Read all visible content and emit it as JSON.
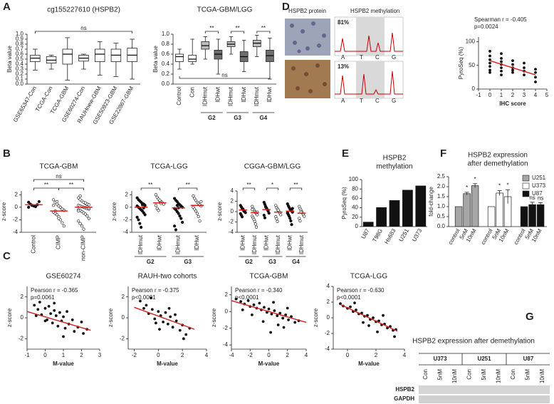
{
  "panel_labels": [
    "A",
    "D",
    "B",
    "E",
    "F",
    "C",
    "G"
  ],
  "panel_d": {
    "image_titles": [
      "HSPB2 protein",
      "HSPB2 methylation"
    ],
    "percentages": [
      "81%",
      "13%"
    ],
    "bases_top": [
      "A",
      "T",
      "C",
      "G"
    ],
    "bases_bottom": [
      "A",
      "T",
      "C",
      "G"
    ]
  },
  "panel_g": {
    "title": "HSPB2 expression after demethylation",
    "cell_lines": [
      "U373",
      "U251",
      "U87"
    ],
    "lanes": [
      "Con",
      "5nM",
      "10nM",
      "Con",
      "5nM",
      "10nM",
      "Con",
      "5nM",
      "10nM"
    ],
    "rows": [
      "HSPB2",
      "GAPDH"
    ]
  },
  "chart_data": [
    {
      "type": "box",
      "title": "cg155227610 (HSPB2)",
      "ylabel": "Beta value",
      "categories": [
        "GSE65347-Con",
        "TCGA-Con",
        "TCGA-GBM",
        "GSE60274-Con",
        "RAUHnew-GBM",
        "GSE50923-GBM",
        "GSE22867-GBM"
      ],
      "whisker_low": [
        0.28,
        0.3,
        0.08,
        0.3,
        0.18,
        0.15,
        0.1
      ],
      "q1": [
        0.45,
        0.42,
        0.4,
        0.46,
        0.45,
        0.45,
        0.45
      ],
      "median": [
        0.52,
        0.48,
        0.6,
        0.52,
        0.6,
        0.58,
        0.58
      ],
      "q3": [
        0.58,
        0.55,
        0.7,
        0.58,
        0.7,
        0.7,
        0.72
      ],
      "whisker_high": [
        0.7,
        0.58,
        0.93,
        0.6,
        0.85,
        0.82,
        0.9
      ],
      "colors": [
        "#ffffff",
        "#ffffff",
        "#ffffff",
        "#ffffff",
        "#ffffff",
        "#ffffff",
        "#ffffff"
      ],
      "ylim": [
        0,
        1
      ],
      "yticks": [
        {
          "value": 0,
          "label": "0.0"
        },
        0.1,
        0.2,
        0.3,
        0.4,
        0.5,
        0.6,
        0.7,
        0.8,
        0.9,
        {
          "value": 1,
          "label": "1.0"
        }
      ],
      "annotations": [
        "ns"
      ]
    },
    {
      "type": "box",
      "title": "TCGA-GBM/LGG",
      "ylabel": "Beta value",
      "categories": [
        "Control",
        "Con",
        "IDHmut",
        "IDHwt",
        "IDHmut",
        "IDHwt",
        "IDHmut",
        "IDHwt"
      ],
      "groups": [
        "G2",
        "G3",
        "G4"
      ],
      "whisker_low": [
        0.3,
        0.4,
        0.5,
        0.2,
        0.6,
        0.25,
        0.55,
        0.1
      ],
      "q1": [
        0.45,
        0.45,
        0.7,
        0.5,
        0.75,
        0.45,
        0.75,
        0.45
      ],
      "median": [
        0.55,
        0.5,
        0.77,
        0.6,
        0.8,
        0.55,
        0.82,
        0.57
      ],
      "q3": [
        0.6,
        0.58,
        0.85,
        0.68,
        0.85,
        0.65,
        0.88,
        0.68
      ],
      "whisker_high": [
        0.7,
        0.9,
        0.95,
        0.9,
        0.95,
        0.88,
        0.98,
        0.92
      ],
      "colors": [
        "#ffffff",
        "#ffffff",
        "#bdbdbd",
        "#6e6e6e",
        "#bdbdbd",
        "#6e6e6e",
        "#bdbdbd",
        "#6e6e6e"
      ],
      "ylim": [
        0,
        1
      ],
      "yticks": [
        {
          "value": 0,
          "label": "0.0"
        },
        0.2,
        0.4,
        0.6,
        0.8,
        {
          "value": 1,
          "label": "1.0"
        }
      ],
      "annotations": [
        "**",
        "**",
        "**",
        "ns"
      ]
    },
    {
      "type": "scatter",
      "stats": [
        "Spearman r = -0.405",
        "p=0.0024"
      ],
      "xlabel": "IHC score",
      "ylabel": "PyroSeq (%)",
      "x": [
        0,
        0,
        0,
        0,
        0,
        0,
        0,
        1,
        1,
        1,
        1,
        1,
        1,
        1,
        2,
        2,
        2,
        2,
        2,
        3,
        3,
        3,
        3,
        4,
        4,
        4,
        4
      ],
      "y": [
        80,
        70,
        62,
        55,
        48,
        40,
        35,
        75,
        65,
        58,
        52,
        45,
        38,
        30,
        60,
        52,
        45,
        40,
        35,
        55,
        45,
        38,
        30,
        42,
        35,
        25,
        15
      ],
      "fit": {
        "x": [
          0,
          4
        ],
        "y": [
          60,
          30
        ]
      },
      "fit_color": "#d62020",
      "xlim": [
        -1,
        5
      ],
      "xticks": [
        -1,
        0,
        1,
        2,
        3,
        4,
        5
      ],
      "ylim": [
        0,
        110
      ],
      "yticks": [
        0,
        50,
        100
      ]
    },
    {
      "type": "strip",
      "title": "TCGA-GBM",
      "ylabel": "z-score",
      "categories": [
        "Control",
        "CIMP",
        "non-CIMP"
      ],
      "values": [
        [
          0.8,
          0.5,
          0.3,
          0.2,
          0.1,
          0.4,
          0.9,
          0.0
        ],
        [
          1.2,
          0.8,
          0.5,
          0.2,
          0.0,
          -0.3,
          -0.5,
          -0.8,
          -1.0,
          -1.2,
          -1.5,
          -2.0,
          -2.5,
          -3.0,
          0.3,
          -0.6,
          0.9,
          -1.8
        ],
        [
          1.5,
          1.2,
          1.0,
          0.8,
          0.6,
          0.5,
          0.4,
          0.3,
          0.2,
          0.1,
          0.0,
          -0.1,
          -0.2,
          -0.3,
          -0.4,
          -0.5,
          -0.7,
          -0.9,
          -1.1,
          -1.4,
          -1.8,
          -2.2,
          -2.6,
          -3.0,
          -3.5,
          0.7,
          0.05,
          -0.15,
          -0.6,
          1.8
        ]
      ],
      "means": [
        0.4,
        -0.6,
        0.0
      ],
      "mean_color": "#e31a1c",
      "marker_filled": [
        true,
        false,
        false
      ],
      "ylim": [
        -4,
        2.6
      ],
      "yticks": [
        -4,
        -2,
        0,
        2
      ],
      "annotations": [
        "**",
        "**",
        "ns"
      ]
    },
    {
      "type": "strip",
      "title": "TCGA-LGG",
      "ylabel": "z-score",
      "categories": [
        "IDHmut",
        "IDHwt",
        "IDHmut",
        "IDHwt"
      ],
      "groups": [
        "G2",
        "G3"
      ],
      "values": [
        [
          1.5,
          1.2,
          1.0,
          0.8,
          0.6,
          0.5,
          0.3,
          0.2,
          0.0,
          -0.2,
          -0.4,
          -0.6,
          -0.9,
          -1.2,
          -1.6,
          -2.0,
          -2.6,
          -3.2,
          0.4,
          -0.1
        ],
        [
          2.0,
          1.6,
          1.3,
          1.0,
          0.9,
          0.7,
          0.5,
          0.3,
          -0.2,
          -0.5,
          1.1,
          0.6
        ],
        [
          1.4,
          1.1,
          0.9,
          0.6,
          0.4,
          0.2,
          0.0,
          -0.2,
          -0.4,
          -0.7,
          -1.0,
          -1.4,
          -1.8,
          -2.4,
          -3.0,
          -3.6,
          0.3,
          -0.1
        ],
        [
          1.8,
          1.4,
          1.1,
          0.8,
          0.6,
          0.4,
          0.2,
          0.0,
          -0.3,
          -0.6,
          -1.0,
          -1.5,
          -2.2,
          0.9
        ]
      ],
      "means": [
        0,
        0.7,
        -0.1,
        0.3
      ],
      "mean_color": "#e31a1c",
      "marker_filled": [
        true,
        false,
        true,
        false
      ],
      "ylim": [
        -4,
        2.6
      ],
      "yticks": [
        -4,
        -2,
        0,
        2
      ],
      "annotations": [
        "**",
        "**"
      ]
    },
    {
      "type": "strip",
      "title": "CGGA-GBM/LGG",
      "ylabel": "z-score",
      "categories": [
        "IDHwt",
        "IDHmut",
        "IDHwt",
        "IDHmut",
        "IDHwt",
        "IDHmut"
      ],
      "groups": [
        "G2",
        "G3",
        "G4"
      ],
      "values": [
        [
          1.2,
          0.9,
          0.6,
          0.4,
          0.2,
          0.0,
          -0.2,
          -0.4,
          -0.7,
          -1.0,
          0.5,
          0.1
        ],
        [
          1.0,
          0.6,
          0.3,
          0.0,
          -0.2,
          -0.4,
          -0.6,
          -0.9,
          -1.2,
          -1.5,
          -1.9,
          -2.4,
          -3.0,
          -0.1,
          0.4
        ],
        [
          1.8,
          1.4,
          1.0,
          0.7,
          0.4,
          0.1,
          -0.3,
          -0.7,
          -1.2,
          0.9
        ],
        [
          1.2,
          0.8,
          0.5,
          0.2,
          0.0,
          -0.3,
          -0.6,
          -1.0,
          -1.4,
          -1.9,
          0.3
        ],
        [
          1.5,
          1.1,
          0.8,
          0.5,
          0.3,
          0.1,
          -0.1,
          -0.3,
          -0.6,
          -0.9,
          -1.3,
          -1.8,
          -2.5,
          0.6,
          -0.2
        ],
        [
          1.0,
          0.6,
          0.3,
          0.0,
          -0.3,
          -0.6,
          -0.9,
          -1.3,
          -1.8,
          -0.1
        ]
      ],
      "means": [
        0.3,
        -0.2,
        0.4,
        -0.1,
        0.1,
        -0.3
      ],
      "mean_color": "#e31a1c",
      "marker_filled": [
        true,
        false,
        true,
        false,
        true,
        false
      ],
      "ylim": [
        -4,
        4
      ],
      "yticks": [
        -4,
        -2,
        0,
        2,
        4
      ],
      "annotations": [
        "**",
        "*",
        "**"
      ]
    },
    {
      "type": "bar",
      "title": [
        "HSPB2",
        "methylation"
      ],
      "ylabel": "PyroSeq (%)",
      "categories": [
        "U87",
        "T98G",
        "Hs683",
        "U251",
        "U373"
      ],
      "values": [
        10,
        41,
        56,
        78,
        87
      ],
      "color": "#111111",
      "ylim": [
        0,
        100
      ],
      "yticks": [
        0,
        20,
        40,
        60,
        80,
        100
      ]
    },
    {
      "type": "grouped_bar",
      "title": [
        "HSPB2 expression",
        "after demethylation"
      ],
      "ylabel": "fold-change",
      "categories": [
        "control",
        "5nM",
        "10nM"
      ],
      "series": [
        {
          "name": "U251",
          "color": "#a6a6a6",
          "values": [
            1,
            1.65,
            2.05
          ],
          "errors": [
            0,
            0.07,
            0.1
          ]
        },
        {
          "name": "U373",
          "color": "#ffffff",
          "values": [
            1,
            1.68,
            1.5
          ],
          "errors": [
            0,
            0.12,
            0.35
          ]
        },
        {
          "name": "U87",
          "color": "#111111",
          "values": [
            1,
            1.1,
            1.1
          ],
          "errors": [
            0,
            0.12,
            0.1
          ]
        }
      ],
      "legend": "top-right",
      "ylim": [
        0,
        2.5
      ],
      "yticks": [
        {
          "value": 0,
          "label": "0.0"
        },
        0.5,
        {
          "value": 1,
          "label": "1.0"
        },
        1.5,
        {
          "value": 2,
          "label": "2.0"
        },
        2.5
      ],
      "annotations": [
        "*",
        "*",
        "*",
        "*",
        "ns",
        "ns"
      ]
    },
    {
      "type": "scatter",
      "title": "GSE60274",
      "stats": [
        "Pearson r = -0.365",
        "p=0.0061"
      ],
      "xlabel": "M-value",
      "ylabel": "z-score",
      "x": [
        -0.6,
        -0.4,
        -0.3,
        -0.2,
        0,
        0.1,
        0.2,
        0.3,
        0.4,
        0.5,
        0.6,
        0.7,
        0.8,
        0.9,
        1.0,
        1.1,
        1.2,
        1.3,
        1.5,
        1.6,
        1.8,
        2.0,
        2.1,
        2.3,
        0.0,
        0.5,
        1.0,
        -0.5
      ],
      "y": [
        1.2,
        0.8,
        1.5,
        0.3,
        0.9,
        -0.2,
        1.1,
        0.4,
        -0.5,
        0.7,
        0.2,
        -0.8,
        0.5,
        -0.3,
        0.1,
        -1.0,
        0.6,
        -0.6,
        -0.2,
        -1.3,
        -0.9,
        -0.4,
        -1.5,
        -1.1,
        -0.3,
        1.4,
        -1.8,
        0.2
      ],
      "fit": {
        "x": [
          -1,
          2.5
        ],
        "y": [
          0.6,
          -1.2
        ]
      },
      "fit_color": "#d62020",
      "xlim": [
        -1,
        3
      ],
      "xticks": [
        -1,
        0,
        1,
        2,
        3
      ],
      "ylim": [
        -3,
        3
      ],
      "yticks": [
        -2,
        0,
        2
      ]
    },
    {
      "type": "scatter",
      "title": "RAUH-two cohorts",
      "stats": [
        "Pearson r = -0.375",
        "p<0.0001"
      ],
      "xlabel": "M-value",
      "ylabel": "z-score",
      "x": [
        -1.5,
        -1.2,
        -1,
        -0.8,
        -0.5,
        -0.3,
        0,
        0.2,
        0.4,
        0.6,
        0.8,
        1,
        1.2,
        1.5,
        1.8,
        2,
        2.3,
        2.6,
        -0.6,
        0.1,
        0.9,
        1.4,
        2.1,
        -0.2
      ],
      "y": [
        1.6,
        0.9,
        1.2,
        0.4,
        0.8,
        -0.1,
        0.6,
        0.2,
        -0.4,
        0.5,
        -0.6,
        0.1,
        -0.9,
        -0.3,
        -1.2,
        -0.7,
        -1.6,
        -1.0,
        1.9,
        -1.1,
        0.9,
        0.3,
        -2.0,
        -0.5
      ],
      "fit": {
        "x": [
          -2,
          3
        ],
        "y": [
          1.0,
          -1.1
        ]
      },
      "fit_color": "#d62020",
      "xlim": [
        -2.5,
        4
      ],
      "xticks": [
        -2,
        0,
        2,
        4
      ],
      "ylim": [
        -3,
        3
      ],
      "yticks": [
        -2,
        0,
        2
      ]
    },
    {
      "type": "scatter",
      "title": "TCGA-GBM",
      "stats": [
        "Pearson r = -0.340",
        "p<0.0001"
      ],
      "xlabel": "M-value",
      "ylabel": "z-score",
      "x": [
        -3.5,
        -3,
        -2.6,
        -2.2,
        -2,
        -1.6,
        -1.3,
        -1,
        -0.8,
        -0.5,
        -0.2,
        0,
        0.3,
        0.6,
        0.9,
        1.2,
        1.5,
        1.8,
        2.1,
        2.4,
        2.8,
        3.2,
        -1.8,
        -0.6,
        0.5,
        1.0,
        2.0,
        -2.8,
        0.2,
        1.6
      ],
      "y": [
        1.5,
        1.2,
        0.9,
        1.3,
        0.6,
        0.8,
        0.4,
        1.0,
        0.2,
        0.5,
        -0.1,
        0.3,
        -0.3,
        0.1,
        -0.5,
        -0.2,
        -0.8,
        -0.4,
        -1.0,
        -0.6,
        -1.3,
        -1.1,
        -0.4,
        -1.2,
        1.1,
        -1.6,
        0.4,
        0.2,
        -2.5,
        -1.9
      ],
      "fit": {
        "x": [
          -4,
          4
        ],
        "y": [
          1.3,
          -1.3
        ]
      },
      "fit_color": "#d62020",
      "xlim": [
        -4,
        4
      ],
      "xticks": [
        -4,
        -2,
        0,
        2,
        4
      ],
      "ylim": [
        -4.5,
        3
      ],
      "yticks": [
        -4,
        -2,
        0,
        2
      ]
    },
    {
      "type": "scatter",
      "title": "TCGA-LGG",
      "stats": [
        "Pearson r = -0.630",
        "p<0.0001"
      ],
      "xlabel": "M-value",
      "ylabel": "z-score",
      "x": [
        -0.5,
        -0.3,
        0,
        0.2,
        0.4,
        0.6,
        0.8,
        1,
        1.2,
        1.4,
        1.6,
        1.8,
        2,
        2.2,
        2.4,
        2.6,
        2.8,
        3,
        3.2,
        3.4,
        0.5,
        1.5,
        2.5,
        1.1,
        2.1,
        3.3
      ],
      "y": [
        1.8,
        1.5,
        1.2,
        1.4,
        0.8,
        1.0,
        0.5,
        0.6,
        0.2,
        0.3,
        -0.2,
        0.0,
        -0.5,
        -0.4,
        -0.9,
        -0.8,
        -1.3,
        -1.1,
        -1.6,
        -1.5,
        1.9,
        -1.0,
        0.3,
        -0.6,
        -1.8,
        -2.4
      ],
      "fit": {
        "x": [
          -0.5,
          3.5
        ],
        "y": [
          1.7,
          -1.7
        ]
      },
      "fit_color": "#d62020",
      "xlim": [
        -1,
        4
      ],
      "xticks": [
        0,
        2,
        4
      ],
      "ylim": [
        -4,
        4
      ],
      "yticks": [
        -4,
        -2,
        0,
        2,
        4
      ]
    }
  ]
}
